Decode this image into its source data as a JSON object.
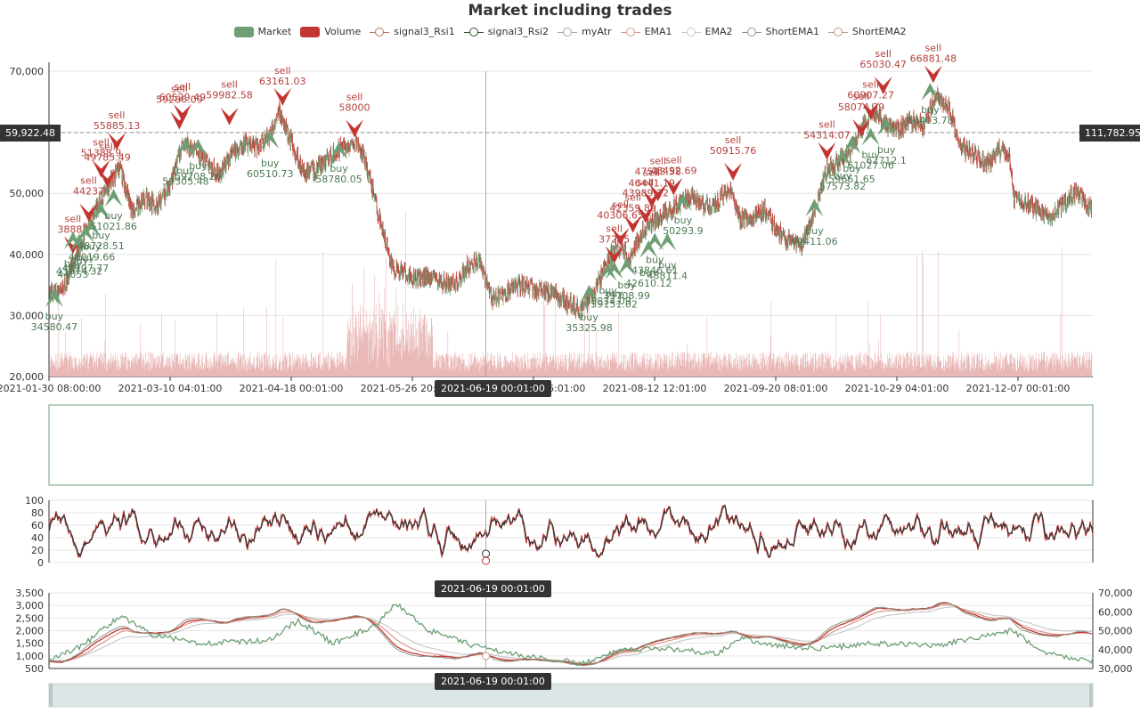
{
  "chart_data": {
    "type": "candlestick",
    "title": "Market including trades",
    "legend": [
      {
        "name": "Market",
        "kind": "box",
        "color": "#6e9f74"
      },
      {
        "name": "Volume",
        "kind": "box",
        "color": "#c23531"
      },
      {
        "name": "signal3_Rsi1",
        "kind": "line",
        "color": "#b5775f"
      },
      {
        "name": "signal3_Rsi2",
        "kind": "line",
        "color": "#2f4f2f"
      },
      {
        "name": "myAtr",
        "kind": "line",
        "color": "#a8a8a8"
      },
      {
        "name": "EMA1",
        "kind": "line",
        "color": "#d99a8c"
      },
      {
        "name": "EMA2",
        "kind": "line",
        "color": "#c9c9c9"
      },
      {
        "name": "ShortEMA1",
        "kind": "line",
        "color": "#8a9a8a"
      },
      {
        "name": "ShortEMA2",
        "kind": "line",
        "color": "#c89a86"
      }
    ],
    "colors": {
      "up": "#6e9f74",
      "down": "#c23531",
      "volume": "#e8b9b7",
      "sell": "#c23531",
      "buy": "#6e9f74",
      "rsi_dark": "#333333"
    },
    "price_axis": {
      "ylim": [
        20000,
        70000
      ],
      "ticks": [
        "20,000",
        "30,000",
        "40,000",
        "50,000",
        "60,000",
        "70,000"
      ]
    },
    "x_ticks": [
      "2021-01-30 08:00:00",
      "2021-03-10 04:01:00",
      "2021-04-18 00:01:00",
      "2021-05-26 20:01:00",
      "2021-07-04 16:01:00",
      "2021-08-12 12:01:00",
      "2021-09-20 08:01:00",
      "2021-10-29 04:01:00",
      "2021-12-07 00:01:00"
    ],
    "crosshair": {
      "x_label": "2021-06-19 00:01:00",
      "left_value": "59,922.48",
      "right_value": "111,782.95"
    },
    "price_path": [
      [
        "2021-01-30",
        34000
      ],
      [
        "2021-02-03",
        33500
      ],
      [
        "2021-02-07",
        38000
      ],
      [
        "2021-02-11",
        44000
      ],
      [
        "2021-02-15",
        48000
      ],
      [
        "2021-02-19",
        52000
      ],
      [
        "2021-02-22",
        54000
      ],
      [
        "2021-02-26",
        47000
      ],
      [
        "2021-03-02",
        49000
      ],
      [
        "2021-03-06",
        48000
      ],
      [
        "2021-03-10",
        51000
      ],
      [
        "2021-03-14",
        58000
      ],
      [
        "2021-03-18",
        57000
      ],
      [
        "2021-03-22",
        55000
      ],
      [
        "2021-03-26",
        53000
      ],
      [
        "2021-03-30",
        57000
      ],
      [
        "2021-04-03",
        58000
      ],
      [
        "2021-04-07",
        57500
      ],
      [
        "2021-04-11",
        59500
      ],
      [
        "2021-04-14",
        63500
      ],
      [
        "2021-04-18",
        58000
      ],
      [
        "2021-04-22",
        53000
      ],
      [
        "2021-04-26",
        54000
      ],
      [
        "2021-04-30",
        56000
      ],
      [
        "2021-05-04",
        57500
      ],
      [
        "2021-05-08",
        58500
      ],
      [
        "2021-05-11",
        56000
      ],
      [
        "2021-05-14",
        50000
      ],
      [
        "2021-05-17",
        44000
      ],
      [
        "2021-05-20",
        38000
      ],
      [
        "2021-05-24",
        37000
      ],
      [
        "2021-05-28",
        36000
      ],
      [
        "2021-06-01",
        36500
      ],
      [
        "2021-06-05",
        35500
      ],
      [
        "2021-06-09",
        35000
      ],
      [
        "2021-06-13",
        38000
      ],
      [
        "2021-06-17",
        39000
      ],
      [
        "2021-06-21",
        33000
      ],
      [
        "2021-06-25",
        33500
      ],
      [
        "2021-06-29",
        35000
      ],
      [
        "2021-07-03",
        34500
      ],
      [
        "2021-07-07",
        34000
      ],
      [
        "2021-07-11",
        33500
      ],
      [
        "2021-07-15",
        32000
      ],
      [
        "2021-07-19",
        31000
      ],
      [
        "2021-07-23",
        33000
      ],
      [
        "2021-07-27",
        38000
      ],
      [
        "2021-07-31",
        41500
      ],
      [
        "2021-08-04",
        39500
      ],
      [
        "2021-08-08",
        44000
      ],
      [
        "2021-08-12",
        45500
      ],
      [
        "2021-08-16",
        47000
      ],
      [
        "2021-08-20",
        48500
      ],
      [
        "2021-08-24",
        49500
      ],
      [
        "2021-08-28",
        48000
      ],
      [
        "2021-09-01",
        48500
      ],
      [
        "2021-09-05",
        51000
      ],
      [
        "2021-09-08",
        46000
      ],
      [
        "2021-09-12",
        45500
      ],
      [
        "2021-09-16",
        47500
      ],
      [
        "2021-09-20",
        44000
      ],
      [
        "2021-09-24",
        42000
      ],
      [
        "2021-09-28",
        41500
      ],
      [
        "2021-10-02",
        47000
      ],
      [
        "2021-10-06",
        54000
      ],
      [
        "2021-10-10",
        55500
      ],
      [
        "2021-10-14",
        57500
      ],
      [
        "2021-10-18",
        61500
      ],
      [
        "2021-10-21",
        63500
      ],
      [
        "2021-10-25",
        61000
      ],
      [
        "2021-10-29",
        60500
      ],
      [
        "2021-11-02",
        62000
      ],
      [
        "2021-11-06",
        61000
      ],
      [
        "2021-11-10",
        66500
      ],
      [
        "2021-11-14",
        64000
      ],
      [
        "2021-11-18",
        57500
      ],
      [
        "2021-11-22",
        56500
      ],
      [
        "2021-11-26",
        54500
      ],
      [
        "2021-11-30",
        57000
      ],
      [
        "2021-12-03",
        56500
      ],
      [
        "2021-12-05",
        49000
      ],
      [
        "2021-12-09",
        48500
      ],
      [
        "2021-12-13",
        47000
      ],
      [
        "2021-12-17",
        46500
      ],
      [
        "2021-12-21",
        48500
      ],
      [
        "2021-12-25",
        50500
      ],
      [
        "2021-12-29",
        47500
      ]
    ],
    "trades": [
      {
        "side": "sell",
        "date": "2021-02-07",
        "price": "38887"
      },
      {
        "side": "sell",
        "date": "2021-02-12",
        "price": "44237"
      },
      {
        "side": "sell",
        "date": "2021-02-16",
        "price": "51388.9"
      },
      {
        "side": "sell",
        "date": "2021-02-18",
        "price": "49785.49"
      },
      {
        "side": "sell",
        "date": "2021-02-21",
        "price": "55885.13"
      },
      {
        "side": "sell",
        "date": "2021-03-13",
        "price": "59286.09"
      },
      {
        "side": "sell",
        "date": "2021-03-14",
        "price": "60529.49"
      },
      {
        "side": "sell",
        "date": "2021-03-29",
        "price": "59982.58"
      },
      {
        "side": "sell",
        "date": "2021-04-15",
        "price": "63161.03"
      },
      {
        "side": "sell",
        "date": "2021-05-08",
        "price": "58000"
      },
      {
        "side": "sell",
        "date": "2021-07-30",
        "price": "37265"
      },
      {
        "side": "sell",
        "date": "2021-08-01",
        "price": "40306.65"
      },
      {
        "side": "sell",
        "date": "2021-08-05",
        "price": "42359.89"
      },
      {
        "side": "sell",
        "date": "2021-08-09",
        "price": "43989.22"
      },
      {
        "side": "sell",
        "date": "2021-08-11",
        "price": "46441.19"
      },
      {
        "side": "sell",
        "date": "2021-08-13",
        "price": "47513.58"
      },
      {
        "side": "sell",
        "date": "2021-08-18",
        "price": "48492.69"
      },
      {
        "side": "sell",
        "date": "2021-09-06",
        "price": "50915.76"
      },
      {
        "side": "sell",
        "date": "2021-10-06",
        "price": "54314.07"
      },
      {
        "side": "sell",
        "date": "2021-10-17",
        "price": "58074.39"
      },
      {
        "side": "sell",
        "date": "2021-10-20",
        "price": "60907.27"
      },
      {
        "side": "sell",
        "date": "2021-10-24",
        "price": "65030.47"
      },
      {
        "side": "sell",
        "date": "2021-11-09",
        "price": "66881.48"
      },
      {
        "side": "buy",
        "date": "2021-02-01",
        "price": "34580.47"
      },
      {
        "side": "buy",
        "date": "2021-02-07",
        "price": "44053"
      },
      {
        "side": "buy",
        "date": "2021-02-09",
        "price": "43674.32"
      },
      {
        "side": "buy",
        "date": "2021-02-11",
        "price": "45107.77"
      },
      {
        "side": "buy",
        "date": "2021-02-13",
        "price": "46019.66"
      },
      {
        "side": "buy",
        "date": "2021-02-16",
        "price": "48728.51"
      },
      {
        "side": "buy",
        "date": "2021-02-20",
        "price": "51021.86"
      },
      {
        "side": "buy",
        "date": "2021-03-15",
        "price": "59305.48"
      },
      {
        "side": "buy",
        "date": "2021-03-19",
        "price": "59208.26"
      },
      {
        "side": "buy",
        "date": "2021-04-11",
        "price": "60510.73"
      },
      {
        "side": "buy",
        "date": "2021-05-03",
        "price": "58780.05"
      },
      {
        "side": "buy",
        "date": "2021-07-22",
        "price": "35325.98"
      },
      {
        "side": "buy",
        "date": "2021-07-28",
        "price": "38834.09"
      },
      {
        "side": "buy",
        "date": "2021-07-30",
        "price": "39151.02"
      },
      {
        "side": "buy",
        "date": "2021-08-03",
        "price": "39708.99"
      },
      {
        "side": "buy",
        "date": "2021-08-10",
        "price": "42610.12"
      },
      {
        "side": "buy",
        "date": "2021-08-12",
        "price": "43846.61"
      },
      {
        "side": "buy",
        "date": "2021-08-16",
        "price": "43811.4"
      },
      {
        "side": "buy",
        "date": "2021-08-21",
        "price": "50293.9"
      },
      {
        "side": "buy",
        "date": "2021-10-02",
        "price": "49411.06"
      },
      {
        "side": "buy",
        "date": "2021-10-11",
        "price": "57573.82"
      },
      {
        "side": "buy",
        "date": "2021-10-14",
        "price": "59661.65"
      },
      {
        "side": "buy",
        "date": "2021-10-20",
        "price": "61027.06"
      },
      {
        "side": "buy",
        "date": "2021-10-25",
        "price": "62712.1"
      },
      {
        "side": "buy",
        "date": "2021-11-08",
        "price": "68403.78"
      }
    ],
    "rsi_panel": {
      "ylim": [
        0,
        100
      ],
      "ticks": [
        "0",
        "20",
        "40",
        "60",
        "80",
        "100"
      ],
      "crosshair_label": "2021-06-19 00:01:00"
    },
    "atr_ema_panel": {
      "left_ylim": [
        500,
        3500
      ],
      "left_ticks": [
        "500",
        "1,000",
        "1,500",
        "2,000",
        "2,500",
        "3,000",
        "3,500"
      ],
      "right_ylim": [
        30000,
        70000
      ],
      "right_ticks": [
        "30,000",
        "40,000",
        "50,000",
        "60,000",
        "70,000"
      ],
      "crosshair_label": "2021-06-19 00:01:00",
      "atr_path": [
        [
          "2021-01-30",
          800
        ],
        [
          "2021-02-10",
          1400
        ],
        [
          "2021-02-22",
          2600
        ],
        [
          "2021-03-05",
          1800
        ],
        [
          "2021-03-20",
          1500
        ],
        [
          "2021-04-10",
          1600
        ],
        [
          "2021-04-20",
          2400
        ],
        [
          "2021-05-01",
          1500
        ],
        [
          "2021-05-15",
          2200
        ],
        [
          "2021-05-21",
          3100
        ],
        [
          "2021-06-01",
          2000
        ],
        [
          "2021-06-15",
          1400
        ],
        [
          "2021-07-01",
          1000
        ],
        [
          "2021-07-20",
          700
        ],
        [
          "2021-08-01",
          1200
        ],
        [
          "2021-08-15",
          1300
        ],
        [
          "2021-09-01",
          1100
        ],
        [
          "2021-09-08",
          1700
        ],
        [
          "2021-09-20",
          1400
        ],
        [
          "2021-10-05",
          1300
        ],
        [
          "2021-10-20",
          1500
        ],
        [
          "2021-11-10",
          1400
        ],
        [
          "2021-12-04",
          2000
        ],
        [
          "2021-12-15",
          1100
        ],
        [
          "2021-12-29",
          800
        ]
      ]
    }
  }
}
